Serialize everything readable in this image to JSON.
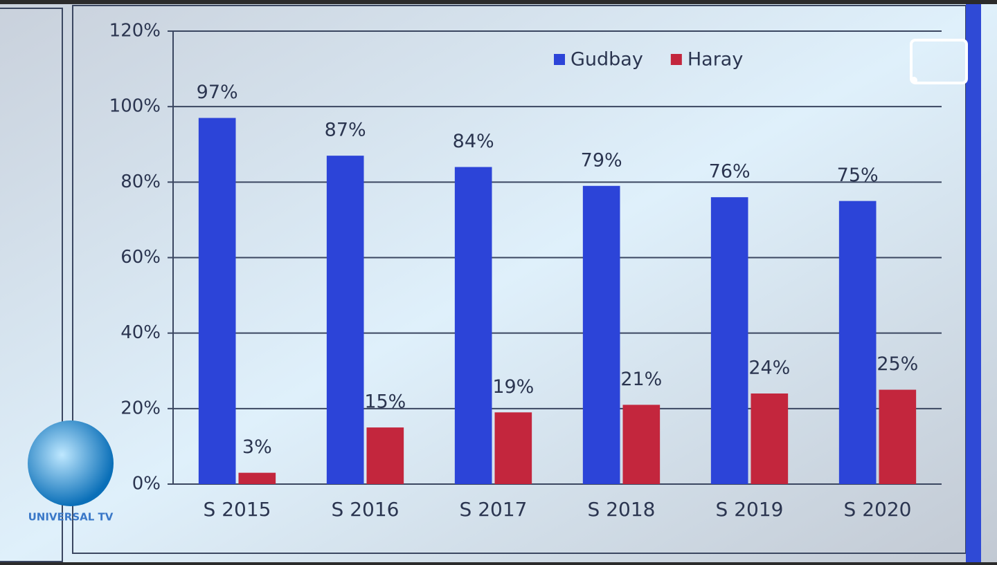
{
  "chart_data": {
    "type": "bar",
    "categories": [
      "S 2015",
      "S 2016",
      "S 2017",
      "S 2018",
      "S 2019",
      "S 2020"
    ],
    "series": [
      {
        "name": "Gudbay",
        "color": "#2c44d8",
        "values": [
          97,
          87,
          84,
          79,
          76,
          75
        ],
        "value_labels": [
          "97%",
          "87%",
          "84%",
          "79%",
          "76%",
          "75%"
        ]
      },
      {
        "name": "Haray",
        "color": "#c3263d",
        "values": [
          3,
          15,
          19,
          21,
          24,
          25
        ],
        "value_labels": [
          "3%",
          "15%",
          "19%",
          "21%",
          "24%",
          "25%"
        ]
      }
    ],
    "ylim": [
      0,
      120
    ],
    "yticks": [
      {
        "value": 0,
        "label": "0%"
      },
      {
        "value": 20,
        "label": "20%"
      },
      {
        "value": 40,
        "label": "40%"
      },
      {
        "value": 60,
        "label": "60%"
      },
      {
        "value": 80,
        "label": "80%"
      },
      {
        "value": 100,
        "label": "100%"
      },
      {
        "value": 120,
        "label": "120%"
      }
    ],
    "grid": true,
    "legend": "top"
  },
  "watermark": "UNIVERSAL TV"
}
